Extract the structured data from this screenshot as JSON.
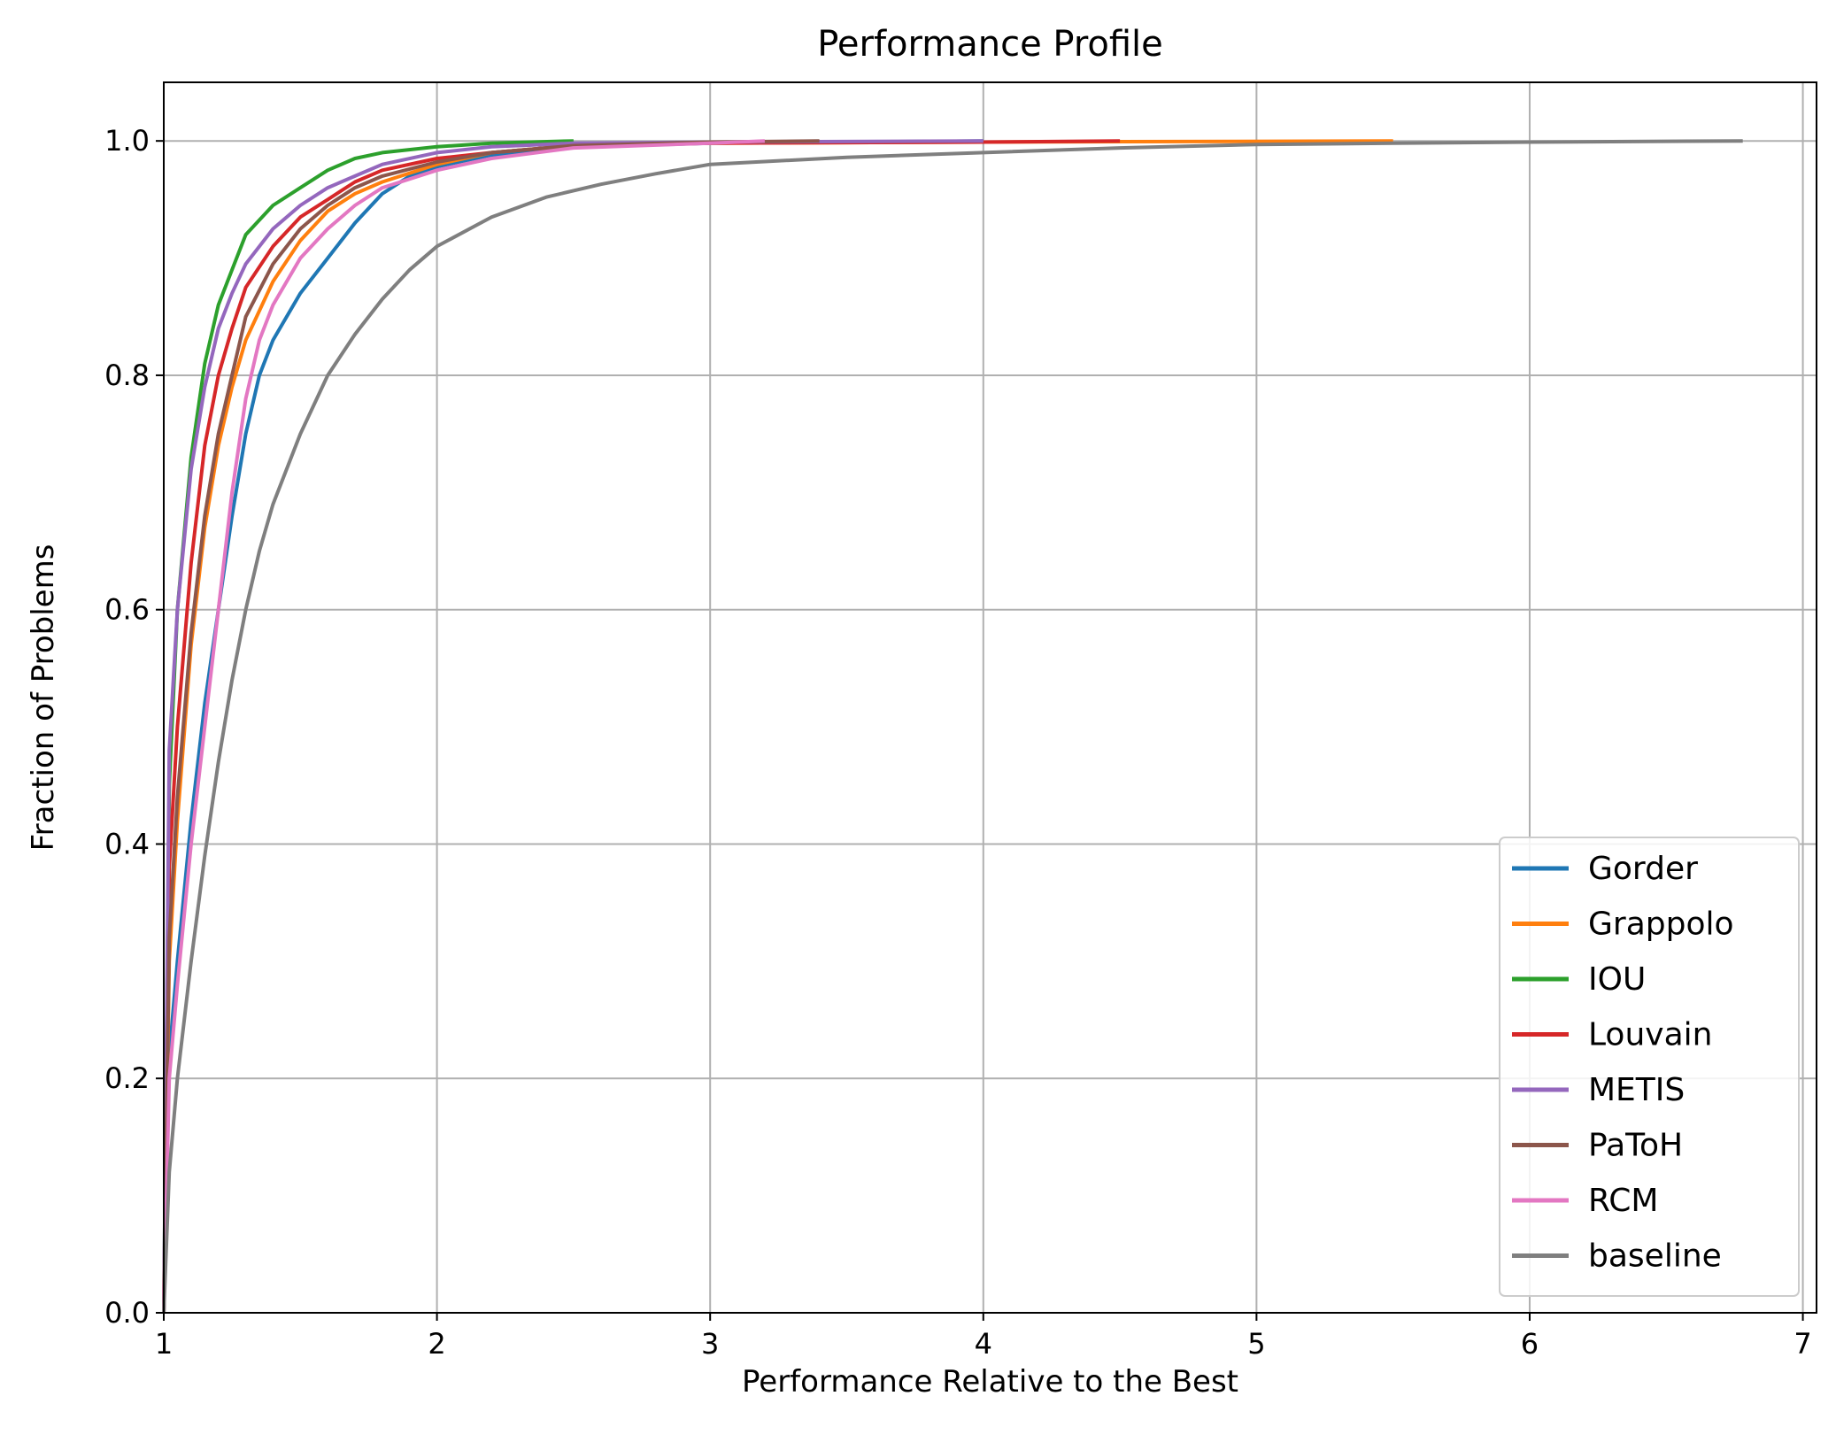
{
  "chart_data": {
    "type": "line",
    "title": "Performance Profile",
    "xlabel": "Performance Relative to the Best",
    "ylabel": "Fraction of Problems",
    "xlim": [
      1,
      7.05
    ],
    "ylim": [
      0,
      1.05
    ],
    "xticks": [
      1,
      2,
      3,
      4,
      5,
      6,
      7
    ],
    "yticks": [
      0.0,
      0.2,
      0.4,
      0.6,
      0.8,
      1.0
    ],
    "xtick_labels": [
      "1",
      "2",
      "3",
      "4",
      "5",
      "6",
      "7"
    ],
    "ytick_labels": [
      "0.0",
      "0.2",
      "0.4",
      "0.6",
      "0.8",
      "1.0"
    ],
    "grid": true,
    "legend_position": "lower-right",
    "series": [
      {
        "name": "Gorder",
        "color": "#1f77b4",
        "points": [
          [
            1,
            0
          ],
          [
            1.02,
            0.22
          ],
          [
            1.05,
            0.3
          ],
          [
            1.1,
            0.42
          ],
          [
            1.15,
            0.52
          ],
          [
            1.2,
            0.6
          ],
          [
            1.25,
            0.68
          ],
          [
            1.3,
            0.75
          ],
          [
            1.35,
            0.8
          ],
          [
            1.4,
            0.83
          ],
          [
            1.5,
            0.87
          ],
          [
            1.6,
            0.9
          ],
          [
            1.7,
            0.93
          ],
          [
            1.8,
            0.955
          ],
          [
            1.9,
            0.97
          ],
          [
            2.0,
            0.978
          ],
          [
            2.2,
            0.988
          ],
          [
            2.5,
            0.995
          ],
          [
            3.0,
            0.998
          ],
          [
            4.0,
            1.0
          ]
        ]
      },
      {
        "name": "Grappolo",
        "color": "#ff7f0e",
        "points": [
          [
            1,
            0
          ],
          [
            1.02,
            0.3
          ],
          [
            1.05,
            0.42
          ],
          [
            1.1,
            0.57
          ],
          [
            1.15,
            0.67
          ],
          [
            1.2,
            0.74
          ],
          [
            1.25,
            0.79
          ],
          [
            1.3,
            0.83
          ],
          [
            1.4,
            0.88
          ],
          [
            1.5,
            0.915
          ],
          [
            1.6,
            0.94
          ],
          [
            1.7,
            0.955
          ],
          [
            1.8,
            0.965
          ],
          [
            2.0,
            0.98
          ],
          [
            2.2,
            0.99
          ],
          [
            2.5,
            0.996
          ],
          [
            3.0,
            0.998
          ],
          [
            4.0,
            0.999
          ],
          [
            5.5,
            1.0
          ]
        ]
      },
      {
        "name": "IOU",
        "color": "#2ca02c",
        "points": [
          [
            1,
            0
          ],
          [
            1.02,
            0.45
          ],
          [
            1.05,
            0.6
          ],
          [
            1.1,
            0.73
          ],
          [
            1.15,
            0.81
          ],
          [
            1.2,
            0.86
          ],
          [
            1.25,
            0.89
          ],
          [
            1.3,
            0.92
          ],
          [
            1.4,
            0.945
          ],
          [
            1.5,
            0.96
          ],
          [
            1.6,
            0.975
          ],
          [
            1.7,
            0.985
          ],
          [
            1.8,
            0.99
          ],
          [
            2.0,
            0.995
          ],
          [
            2.2,
            0.998
          ],
          [
            2.5,
            1.0
          ]
        ]
      },
      {
        "name": "Louvain",
        "color": "#d62728",
        "points": [
          [
            1,
            0
          ],
          [
            1.02,
            0.38
          ],
          [
            1.05,
            0.5
          ],
          [
            1.1,
            0.64
          ],
          [
            1.15,
            0.74
          ],
          [
            1.2,
            0.8
          ],
          [
            1.25,
            0.84
          ],
          [
            1.3,
            0.875
          ],
          [
            1.4,
            0.91
          ],
          [
            1.5,
            0.935
          ],
          [
            1.6,
            0.95
          ],
          [
            1.7,
            0.965
          ],
          [
            1.8,
            0.975
          ],
          [
            2.0,
            0.985
          ],
          [
            2.2,
            0.99
          ],
          [
            2.5,
            0.996
          ],
          [
            3.0,
            0.998
          ],
          [
            4.0,
            0.999
          ],
          [
            4.5,
            1.0
          ]
        ]
      },
      {
        "name": "METIS",
        "color": "#9467bd",
        "points": [
          [
            1,
            0
          ],
          [
            1.02,
            0.48
          ],
          [
            1.05,
            0.6
          ],
          [
            1.1,
            0.72
          ],
          [
            1.15,
            0.79
          ],
          [
            1.2,
            0.84
          ],
          [
            1.25,
            0.87
          ],
          [
            1.3,
            0.895
          ],
          [
            1.4,
            0.925
          ],
          [
            1.5,
            0.945
          ],
          [
            1.6,
            0.96
          ],
          [
            1.7,
            0.97
          ],
          [
            1.8,
            0.98
          ],
          [
            2.0,
            0.99
          ],
          [
            2.2,
            0.995
          ],
          [
            2.5,
            0.998
          ],
          [
            3.0,
            0.999
          ],
          [
            4.0,
            1.0
          ]
        ]
      },
      {
        "name": "PaToH",
        "color": "#8c564b",
        "points": [
          [
            1,
            0
          ],
          [
            1.02,
            0.32
          ],
          [
            1.05,
            0.44
          ],
          [
            1.1,
            0.58
          ],
          [
            1.15,
            0.68
          ],
          [
            1.2,
            0.75
          ],
          [
            1.25,
            0.8
          ],
          [
            1.3,
            0.85
          ],
          [
            1.4,
            0.895
          ],
          [
            1.5,
            0.925
          ],
          [
            1.6,
            0.945
          ],
          [
            1.7,
            0.96
          ],
          [
            1.8,
            0.97
          ],
          [
            2.0,
            0.982
          ],
          [
            2.2,
            0.99
          ],
          [
            2.5,
            0.996
          ],
          [
            3.0,
            0.999
          ],
          [
            3.4,
            1.0
          ]
        ]
      },
      {
        "name": "RCM",
        "color": "#e377c2",
        "points": [
          [
            1,
            0
          ],
          [
            1.02,
            0.2
          ],
          [
            1.05,
            0.28
          ],
          [
            1.1,
            0.4
          ],
          [
            1.15,
            0.5
          ],
          [
            1.2,
            0.6
          ],
          [
            1.25,
            0.7
          ],
          [
            1.3,
            0.78
          ],
          [
            1.35,
            0.83
          ],
          [
            1.4,
            0.86
          ],
          [
            1.5,
            0.9
          ],
          [
            1.6,
            0.925
          ],
          [
            1.7,
            0.945
          ],
          [
            1.8,
            0.96
          ],
          [
            2.0,
            0.975
          ],
          [
            2.2,
            0.985
          ],
          [
            2.5,
            0.994
          ],
          [
            3.0,
            0.998
          ],
          [
            3.2,
            1.0
          ]
        ]
      },
      {
        "name": "baseline",
        "color": "#7f7f7f",
        "points": [
          [
            1,
            0
          ],
          [
            1.02,
            0.12
          ],
          [
            1.05,
            0.2
          ],
          [
            1.1,
            0.3
          ],
          [
            1.15,
            0.39
          ],
          [
            1.2,
            0.47
          ],
          [
            1.25,
            0.54
          ],
          [
            1.3,
            0.6
          ],
          [
            1.35,
            0.65
          ],
          [
            1.4,
            0.69
          ],
          [
            1.5,
            0.75
          ],
          [
            1.6,
            0.8
          ],
          [
            1.7,
            0.835
          ],
          [
            1.8,
            0.865
          ],
          [
            1.9,
            0.89
          ],
          [
            2.0,
            0.91
          ],
          [
            2.2,
            0.935
          ],
          [
            2.4,
            0.952
          ],
          [
            2.6,
            0.963
          ],
          [
            2.8,
            0.972
          ],
          [
            3.0,
            0.98
          ],
          [
            3.5,
            0.986
          ],
          [
            4.0,
            0.99
          ],
          [
            4.5,
            0.994
          ],
          [
            5.0,
            0.997
          ],
          [
            5.5,
            0.998
          ],
          [
            6.0,
            0.999
          ],
          [
            6.78,
            1.0
          ]
        ]
      }
    ]
  }
}
